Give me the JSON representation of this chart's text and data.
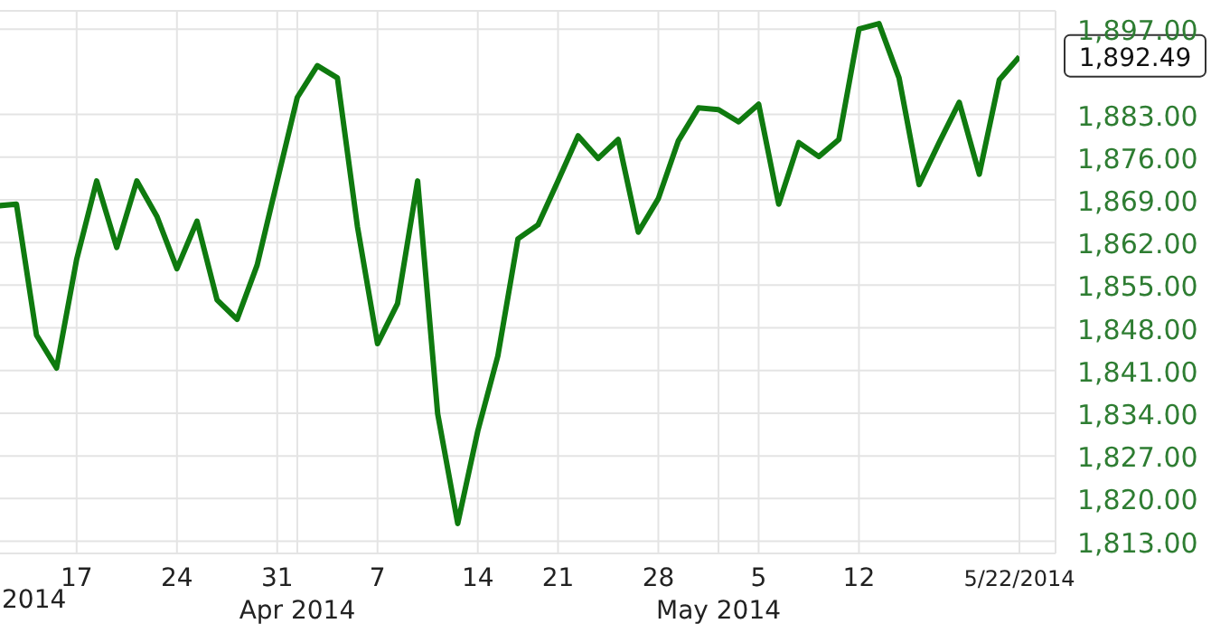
{
  "chart_data": {
    "type": "line",
    "categories": [
      null,
      null,
      null,
      null,
      "17",
      null,
      null,
      null,
      null,
      "24",
      null,
      null,
      null,
      null,
      "31",
      "Apr 2014",
      null,
      null,
      null,
      "7",
      null,
      null,
      null,
      null,
      "14",
      null,
      null,
      null,
      "21",
      null,
      null,
      null,
      null,
      "28",
      null,
      null,
      "May 2014",
      null,
      "5",
      null,
      null,
      null,
      null,
      "12",
      null,
      null,
      null,
      null,
      null,
      null,
      null,
      "5/22/2014"
    ],
    "series": [
      {
        "color": "#0f7a0f",
        "values": [
          1868.0,
          1868.3,
          1846.8,
          1841.4,
          1859.2,
          1872.1,
          1861.2,
          1872.1,
          1866.3,
          1857.7,
          1865.5,
          1852.6,
          1849.4,
          1858.3,
          1872.1,
          1885.8,
          1891.0,
          1889.0,
          1864.6,
          1845.4,
          1852.0,
          1872.1,
          1833.9,
          1815.9,
          1831.1,
          1843.4,
          1862.6,
          1864.9,
          1872.1,
          1879.5,
          1875.8,
          1878.9,
          1863.7,
          1869.2,
          1878.7,
          1884.1,
          1883.8,
          1881.8,
          1884.7,
          1868.3,
          1878.4,
          1876.1,
          1878.9,
          1897.0,
          1897.9,
          1889.0,
          1871.5,
          1878.4,
          1885.0,
          1873.2,
          1888.7,
          1892.49
        ]
      }
    ],
    "ylim": [
      1811,
      1900
    ],
    "yticks": [
      {
        "value": 1813,
        "label": "1,813.00"
      },
      {
        "value": 1820,
        "label": "1,820.00"
      },
      {
        "value": 1827,
        "label": "1,827.00"
      },
      {
        "value": 1834,
        "label": "1,834.00"
      },
      {
        "value": 1841,
        "label": "1,841.00"
      },
      {
        "value": 1848,
        "label": "1,848.00"
      },
      {
        "value": 1855,
        "label": "1,855.00"
      },
      {
        "value": 1862,
        "label": "1,862.00"
      },
      {
        "value": 1869,
        "label": "1,869.00"
      },
      {
        "value": 1876,
        "label": "1,876.00"
      },
      {
        "value": 1883,
        "label": "1,883.00"
      },
      {
        "value": 1897,
        "label": "1,897.00"
      }
    ],
    "grid": true,
    "marker": "none",
    "annotations": [
      "2014",
      {
        "text": "1,892.49",
        "x": "5/22/2014",
        "y": 1892.49
      }
    ]
  }
}
